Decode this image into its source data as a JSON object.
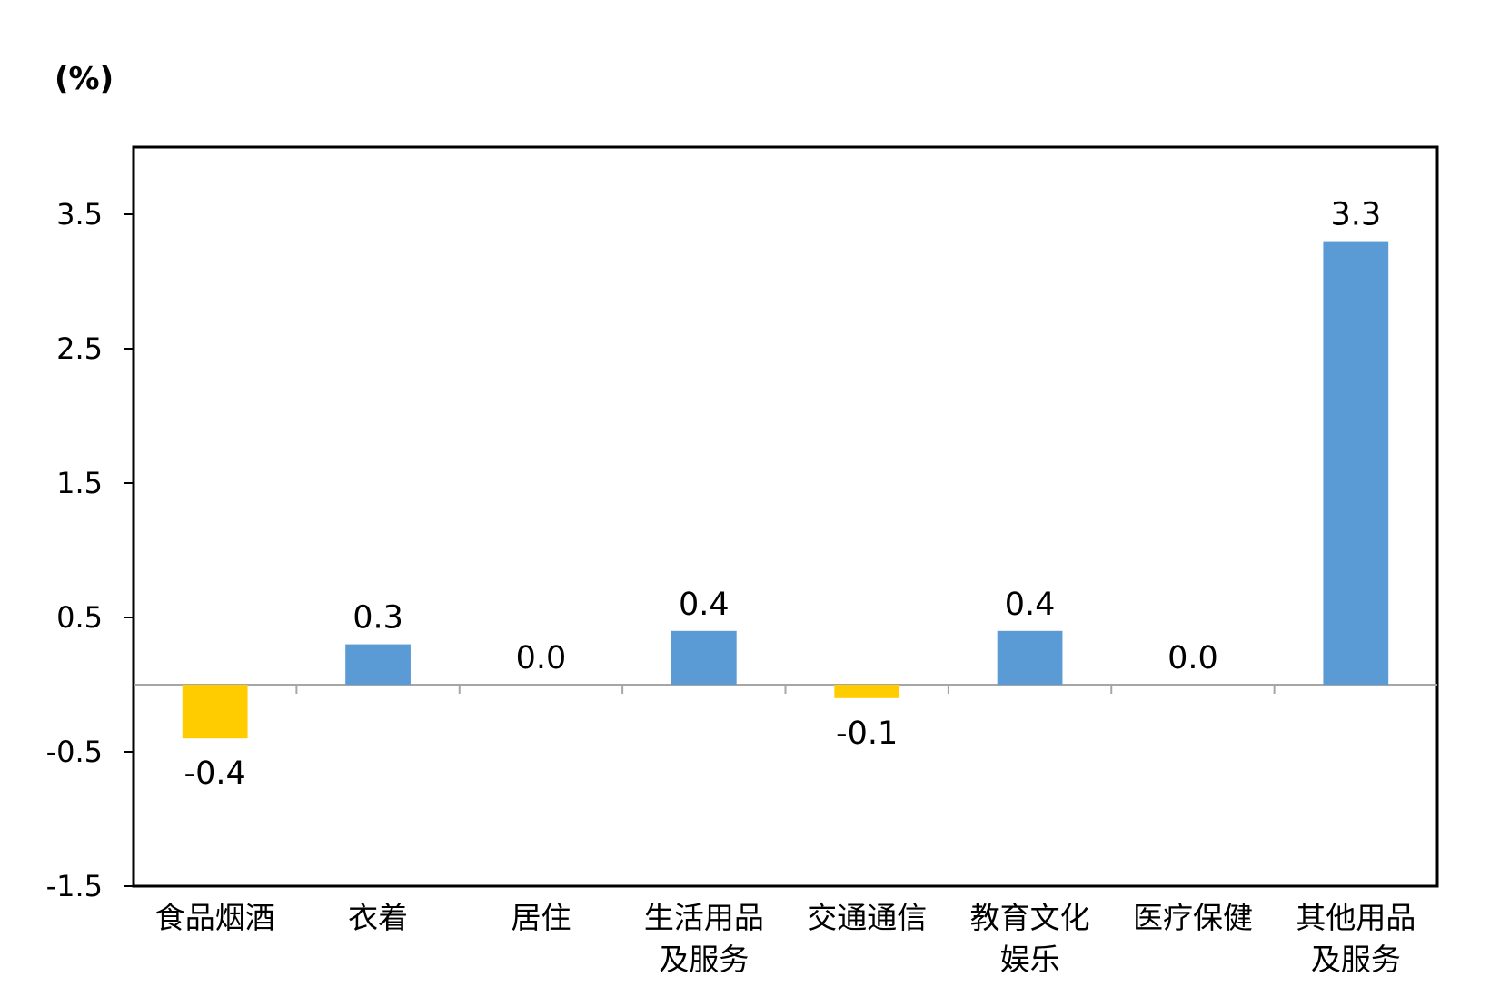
{
  "chart_data": {
    "type": "bar",
    "unit_label": "(%)",
    "categories": [
      [
        "食品烟酒"
      ],
      [
        "衣着"
      ],
      [
        "居住"
      ],
      [
        "生活用品",
        "及服务"
      ],
      [
        "交通通信"
      ],
      [
        "教育文化",
        "娱乐"
      ],
      [
        "医疗保健"
      ],
      [
        "其他用品",
        "及服务"
      ]
    ],
    "values": [
      -0.4,
      0.3,
      0.0,
      0.4,
      -0.1,
      0.4,
      0.0,
      3.3
    ],
    "value_labels": [
      "-0.4",
      "0.3",
      "0.0",
      "0.4",
      "-0.1",
      "0.4",
      "0.0",
      "3.3"
    ],
    "yticks": [
      -1.5,
      -0.5,
      0.5,
      1.5,
      2.5,
      3.5
    ],
    "ytick_labels": [
      "-1.5",
      "-0.5",
      "0.5",
      "1.5",
      "2.5",
      "3.5"
    ],
    "ylim": [
      -1.5,
      4.0
    ],
    "grid": false,
    "legend": "none",
    "colors": {
      "positive": "#5b9bd5",
      "negative": "#ffcc00",
      "frame": "#000000",
      "baseline": "#a6a6a6"
    }
  }
}
